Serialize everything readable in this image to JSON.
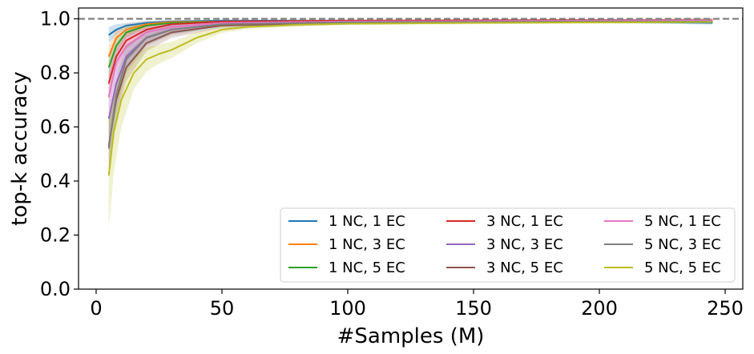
{
  "chart_data": {
    "type": "line",
    "xlabel": "#Samples (M)",
    "ylabel": "top-k accuracy",
    "xlim": [
      -7,
      257
    ],
    "ylim": [
      0.0,
      1.04
    ],
    "xticks": [
      0,
      50,
      100,
      150,
      200,
      250
    ],
    "yticks": [
      0.0,
      0.2,
      0.4,
      0.6,
      0.8,
      1.0
    ],
    "xtick_labels": [
      "0",
      "50",
      "100",
      "150",
      "200",
      "250"
    ],
    "ytick_labels": [
      "0.0",
      "0.2",
      "0.4",
      "0.6",
      "0.8",
      "1.0"
    ],
    "reference_line": {
      "y": 1.0,
      "style": "dashed",
      "color": "#808080"
    },
    "legend_position": "lower-right",
    "legend_columns": 3,
    "grid": false,
    "series": [
      {
        "name": "1 NC, 1 EC",
        "color": "#1f77b4",
        "x": [
          5,
          8,
          12,
          20,
          30,
          50,
          100,
          200,
          245
        ],
        "y": [
          0.94,
          0.96,
          0.975,
          0.985,
          0.99,
          0.993,
          0.993,
          0.99,
          0.985
        ],
        "band": [
          0.03,
          0.02,
          0.01,
          0.008,
          0.005,
          0.004,
          0.004,
          0.005,
          0.006
        ]
      },
      {
        "name": "1 NC, 3 EC",
        "color": "#ff7f0e",
        "x": [
          5,
          8,
          12,
          20,
          30,
          50,
          100,
          200,
          245
        ],
        "y": [
          0.86,
          0.93,
          0.96,
          0.98,
          0.988,
          0.99,
          0.993,
          0.995,
          0.997
        ],
        "band": [
          0.04,
          0.03,
          0.02,
          0.01,
          0.006,
          0.005,
          0.004,
          0.004,
          0.004
        ]
      },
      {
        "name": "1 NC, 5 EC",
        "color": "#2ca02c",
        "x": [
          5,
          8,
          12,
          20,
          30,
          50,
          100,
          200,
          245
        ],
        "y": [
          0.82,
          0.9,
          0.95,
          0.975,
          0.985,
          0.99,
          0.99,
          0.99,
          0.99
        ],
        "band": [
          0.05,
          0.03,
          0.02,
          0.01,
          0.008,
          0.005,
          0.005,
          0.005,
          0.005
        ]
      },
      {
        "name": "3 NC, 1 EC",
        "color": "#d62728",
        "x": [
          5,
          8,
          12,
          20,
          30,
          50,
          100,
          200,
          245
        ],
        "y": [
          0.76,
          0.86,
          0.92,
          0.96,
          0.98,
          0.99,
          0.993,
          0.995,
          0.995
        ],
        "band": [
          0.05,
          0.04,
          0.03,
          0.015,
          0.01,
          0.006,
          0.004,
          0.004,
          0.004
        ]
      },
      {
        "name": "3 NC, 3 EC",
        "color": "#9467bd",
        "x": [
          5,
          8,
          12,
          20,
          30,
          50,
          100,
          200,
          245
        ],
        "y": [
          0.63,
          0.76,
          0.86,
          0.93,
          0.96,
          0.98,
          0.99,
          0.993,
          0.995
        ],
        "band": [
          0.07,
          0.06,
          0.04,
          0.025,
          0.015,
          0.008,
          0.005,
          0.004,
          0.004
        ]
      },
      {
        "name": "3 NC, 5 EC",
        "color": "#8c564b",
        "x": [
          5,
          8,
          12,
          20,
          30,
          50,
          100,
          200,
          245
        ],
        "y": [
          0.53,
          0.7,
          0.82,
          0.91,
          0.95,
          0.975,
          0.985,
          0.99,
          0.99
        ],
        "band": [
          0.09,
          0.07,
          0.05,
          0.03,
          0.02,
          0.01,
          0.006,
          0.005,
          0.005
        ]
      },
      {
        "name": "5 NC, 1 EC",
        "color": "#e377c2",
        "x": [
          5,
          8,
          12,
          20,
          30,
          50,
          100,
          200,
          245
        ],
        "y": [
          0.71,
          0.84,
          0.9,
          0.95,
          0.97,
          0.985,
          0.99,
          0.993,
          0.995
        ],
        "band": [
          0.08,
          0.05,
          0.04,
          0.02,
          0.012,
          0.008,
          0.005,
          0.004,
          0.004
        ]
      },
      {
        "name": "5 NC, 3 EC",
        "color": "#7f7f7f",
        "x": [
          5,
          8,
          12,
          20,
          30,
          50,
          100,
          200,
          245
        ],
        "y": [
          0.52,
          0.72,
          0.85,
          0.93,
          0.96,
          0.98,
          0.987,
          0.99,
          0.99
        ],
        "band": [
          0.1,
          0.07,
          0.05,
          0.03,
          0.02,
          0.01,
          0.006,
          0.005,
          0.005
        ]
      },
      {
        "name": "5 NC, 5 EC",
        "color": "#bcbd22",
        "x": [
          5,
          7,
          10,
          15,
          20,
          25,
          30,
          40,
          50,
          60,
          80,
          100,
          150,
          200,
          245
        ],
        "y": [
          0.42,
          0.58,
          0.7,
          0.8,
          0.85,
          0.87,
          0.885,
          0.93,
          0.96,
          0.97,
          0.978,
          0.982,
          0.985,
          0.987,
          0.988
        ],
        "band": [
          0.2,
          0.15,
          0.1,
          0.06,
          0.045,
          0.035,
          0.03,
          0.02,
          0.012,
          0.008,
          0.006,
          0.005,
          0.005,
          0.005,
          0.005
        ]
      }
    ]
  }
}
